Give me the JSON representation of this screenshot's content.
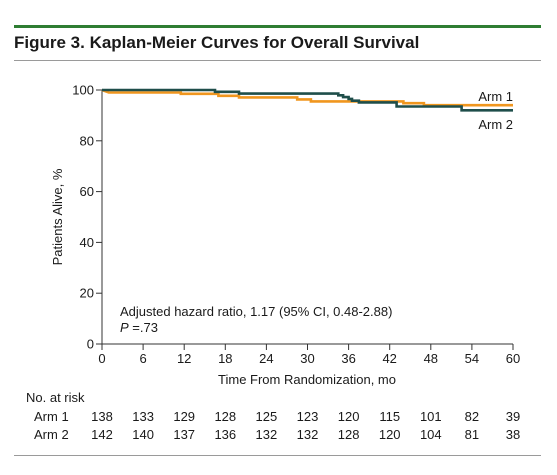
{
  "figure": {
    "title": "Figure 3. Kaplan-Meier Curves for Overall Survival"
  },
  "chart_data": {
    "type": "line",
    "title": "Kaplan-Meier Curves for Overall Survival",
    "xlabel": "Time From Randomization, mo",
    "ylabel": "Patients Alive, %",
    "xlim": [
      0,
      60
    ],
    "ylim": [
      0,
      100
    ],
    "x_ticks": [
      0,
      6,
      12,
      18,
      24,
      30,
      36,
      42,
      48,
      54,
      60
    ],
    "y_ticks": [
      0,
      20,
      40,
      60,
      80,
      100
    ],
    "grid": false,
    "series": [
      {
        "name": "Arm 1",
        "color": "#f0961e",
        "points": [
          [
            0,
            100
          ],
          [
            1,
            99
          ],
          [
            11.5,
            99
          ],
          [
            11.5,
            98.5
          ],
          [
            17,
            98.5
          ],
          [
            17,
            97.7
          ],
          [
            20,
            97.7
          ],
          [
            20,
            97.1
          ],
          [
            28.5,
            97.1
          ],
          [
            28.5,
            96.3
          ],
          [
            30.5,
            96.3
          ],
          [
            30.5,
            95.5
          ],
          [
            44,
            95.5
          ],
          [
            44,
            94.8
          ],
          [
            47,
            94.8
          ],
          [
            47,
            94
          ],
          [
            60,
            94
          ]
        ]
      },
      {
        "name": "Arm 2",
        "color": "#1f4e4a",
        "points": [
          [
            0,
            100
          ],
          [
            16.5,
            100
          ],
          [
            16.5,
            99.3
          ],
          [
            20,
            99.3
          ],
          [
            20,
            98.6
          ],
          [
            34.5,
            98.6
          ],
          [
            34.5,
            97.9
          ],
          [
            35.2,
            97.9
          ],
          [
            35.2,
            97.2
          ],
          [
            36,
            97.2
          ],
          [
            36,
            96.5
          ],
          [
            36.5,
            96.5
          ],
          [
            36.5,
            95.8
          ],
          [
            37.5,
            95.8
          ],
          [
            37.5,
            95.1
          ],
          [
            43,
            95.1
          ],
          [
            43,
            93.5
          ],
          [
            52.5,
            93.5
          ],
          [
            52.5,
            92
          ],
          [
            60,
            92
          ]
        ]
      }
    ],
    "annotations": {
      "line1": "Adjusted hazard ratio, 1.17 (95% CI, 0.48-2.88)",
      "line2_italic": "P",
      "line2_rest": " =.73"
    },
    "risk_table": {
      "header": "No. at risk",
      "rows": [
        {
          "label": "Arm 1",
          "values": [
            138,
            133,
            129,
            128,
            125,
            123,
            120,
            115,
            101,
            82,
            39
          ]
        },
        {
          "label": "Arm 2",
          "values": [
            142,
            140,
            137,
            136,
            132,
            132,
            128,
            120,
            104,
            81,
            38
          ]
        }
      ]
    }
  }
}
